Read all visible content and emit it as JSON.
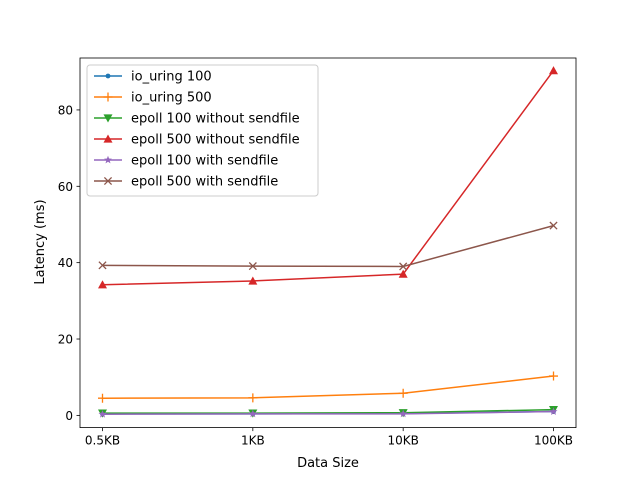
{
  "chart_data": {
    "type": "line",
    "title": "",
    "xlabel": "Data Size",
    "ylabel": "Latency (ms)",
    "categories": [
      "0.5KB",
      "1KB",
      "10KB",
      "100KB"
    ],
    "ylim": [
      -3.2,
      93.6
    ],
    "yticks": [
      0,
      20,
      40,
      60,
      80
    ],
    "grid": false,
    "legend": "top-left",
    "series": [
      {
        "name": "io_uring 100",
        "color": "#1f77b4",
        "marker": "point",
        "values": [
          0.4,
          0.4,
          0.5,
          1.0
        ]
      },
      {
        "name": "io_uring 500",
        "color": "#ff7f0e",
        "marker": "plus",
        "values": [
          4.5,
          4.6,
          5.8,
          10.3
        ]
      },
      {
        "name": "epoll 100 without sendfile",
        "color": "#2ca02c",
        "marker": "triangle-down",
        "values": [
          0.6,
          0.6,
          0.7,
          1.5
        ]
      },
      {
        "name": "epoll 500 without sendfile",
        "color": "#d62728",
        "marker": "triangle-up",
        "values": [
          34.2,
          35.2,
          37.0,
          90.3
        ]
      },
      {
        "name": "epoll 100 with sendfile",
        "color": "#9467bd",
        "marker": "star",
        "values": [
          0.3,
          0.4,
          0.4,
          1.0
        ]
      },
      {
        "name": "epoll 500 with sendfile",
        "color": "#8c564b",
        "marker": "x",
        "values": [
          39.3,
          39.1,
          39.0,
          49.7
        ]
      }
    ]
  }
}
